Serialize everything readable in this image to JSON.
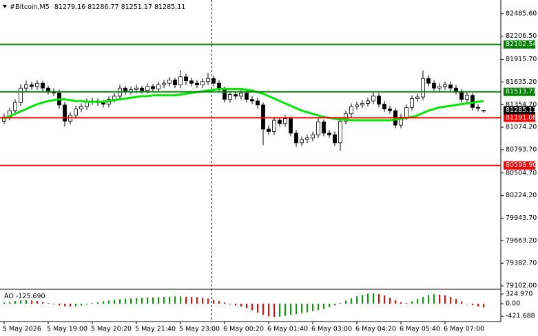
{
  "chart_data": {
    "type": "candlestick",
    "title": "#Bitcoin,M5",
    "x_labels": [
      "5 May 2026",
      "5 May 19:00",
      "5 May 20:20",
      "5 May 21:40",
      "5 May 23:00",
      "6 May 00:20",
      "6 May 01:40",
      "6 May 03:00",
      "6 May 04:20",
      "6 May 05:40",
      "6 May 07:00"
    ],
    "open": [
      81150,
      81200,
      81280,
      81380,
      81560,
      81600,
      81580,
      81620,
      81560,
      81520,
      81500,
      81350,
      81150,
      81220,
      81300,
      81330,
      81390,
      81400,
      81380,
      81360,
      81420,
      81460,
      81560,
      81520,
      81540,
      81560,
      81530,
      81580,
      81550,
      81600,
      81620,
      81660,
      81600,
      81700,
      81650,
      81620,
      81600,
      81640,
      81680,
      81620,
      81560,
      81420,
      81480,
      81460,
      81500,
      81420,
      81400,
      81350,
      81050,
      81020,
      81160,
      81120,
      81180,
      81000,
      80880,
      80920,
      80940,
      80980,
      81140,
      81000,
      80980,
      80880,
      81150,
      81240,
      81330,
      81350,
      81370,
      81400,
      81460,
      81360,
      81300,
      81280,
      81100,
      81200,
      81320,
      81430,
      81450,
      81680,
      81620,
      81560,
      81580,
      81600,
      81560,
      81520,
      81420,
      81470,
      81320,
      81279.16
    ],
    "high": [
      81240,
      81320,
      81420,
      81610,
      81650,
      81640,
      81660,
      81650,
      81590,
      81560,
      81540,
      81390,
      81260,
      81340,
      81370,
      81430,
      81440,
      81430,
      81410,
      81460,
      81500,
      81600,
      81590,
      81580,
      81600,
      81590,
      81620,
      81610,
      81640,
      81660,
      81700,
      81690,
      81780,
      81740,
      81690,
      81660,
      81680,
      81750,
      81720,
      81660,
      81580,
      81520,
      81510,
      81540,
      81530,
      81460,
      81440,
      81380,
      81100,
      81200,
      81200,
      81220,
      81210,
      81040,
      80960,
      80980,
      81020,
      81190,
      81170,
      81040,
      81020,
      81190,
      81280,
      81370,
      81390,
      81410,
      81440,
      81520,
      81500,
      81400,
      81340,
      81310,
      81240,
      81360,
      81470,
      81490,
      81780,
      81720,
      81660,
      81620,
      81640,
      81640,
      81600,
      81550,
      81520,
      81500,
      81360,
      81286.77
    ],
    "low": [
      81110,
      81160,
      81240,
      81340,
      81510,
      81540,
      81540,
      81510,
      81480,
      81460,
      81300,
      81080,
      81110,
      81180,
      81260,
      81290,
      81350,
      81340,
      81320,
      81320,
      81380,
      81420,
      81480,
      81480,
      81500,
      81490,
      81490,
      81510,
      81510,
      81560,
      81580,
      81560,
      81560,
      81600,
      81580,
      81560,
      81560,
      81600,
      81580,
      81520,
      81380,
      81380,
      81420,
      81420,
      81380,
      81360,
      81300,
      80850,
      80980,
      80980,
      81080,
      81080,
      80960,
      80830,
      80840,
      80880,
      80900,
      80940,
      80960,
      80940,
      80840,
      80780,
      81110,
      81200,
      81290,
      81310,
      81330,
      81360,
      81320,
      81260,
      81240,
      81060,
      81060,
      81160,
      81280,
      81390,
      81410,
      81580,
      81520,
      81520,
      81540,
      81520,
      81480,
      81380,
      81380,
      81280,
      81270,
      81251.17
    ],
    "close": [
      81200,
      81280,
      81380,
      81560,
      81600,
      81580,
      81620,
      81560,
      81520,
      81500,
      81350,
      81150,
      81220,
      81300,
      81330,
      81390,
      81400,
      81380,
      81360,
      81420,
      81460,
      81560,
      81520,
      81540,
      81560,
      81530,
      81580,
      81550,
      81600,
      81620,
      81660,
      81600,
      81700,
      81650,
      81620,
      81600,
      81640,
      81680,
      81620,
      81560,
      81420,
      81480,
      81460,
      81500,
      81420,
      81400,
      81350,
      81050,
      81020,
      81160,
      81120,
      81180,
      81000,
      80880,
      80920,
      80940,
      80980,
      81140,
      81000,
      80980,
      80880,
      81150,
      81240,
      81330,
      81350,
      81370,
      81400,
      81460,
      81360,
      81300,
      81280,
      81100,
      81200,
      81320,
      81430,
      81450,
      81680,
      81620,
      81560,
      81580,
      81600,
      81560,
      81520,
      81420,
      81470,
      81320,
      81310,
      81285.11
    ],
    "up_color": "#ffffff",
    "down_color": "#000000",
    "ylim": [
      79068,
      82655
    ],
    "yticks": [
      {
        "value": 82485.6,
        "label": "82485.60"
      },
      {
        "value": 82206.5,
        "label": "82206.50"
      },
      {
        "value": 81915.7,
        "label": "81915.70"
      },
      {
        "value": 81635.2,
        "label": "81635.20"
      },
      {
        "value": 81354.7,
        "label": "81354.70"
      },
      {
        "value": 81074.2,
        "label": "81074.20"
      },
      {
        "value": 80793.7,
        "label": "80793.70"
      },
      {
        "value": 80504.7,
        "label": "80504.70"
      },
      {
        "value": 80224.2,
        "label": "80224.20"
      },
      {
        "value": 79943.7,
        "label": "79943.70"
      },
      {
        "value": 79663.2,
        "label": "79663.20"
      },
      {
        "value": 79382.7,
        "label": "79382.70"
      },
      {
        "value": 79102,
        "label": "79102.00"
      }
    ],
    "ma": {
      "color": "#00e600",
      "values": [
        81180,
        81210,
        81240,
        81270,
        81300,
        81330,
        81360,
        81380,
        81400,
        81410,
        81420,
        81420,
        81410,
        81400,
        81400,
        81390,
        81390,
        81390,
        81390,
        81400,
        81410,
        81420,
        81430,
        81440,
        81450,
        81460,
        81460,
        81470,
        81470,
        81470,
        81470,
        81470,
        81480,
        81490,
        81500,
        81510,
        81520,
        81530,
        81540,
        81550,
        81550,
        81550,
        81550,
        81550,
        81540,
        81530,
        81510,
        81490,
        81460,
        81430,
        81400,
        81370,
        81340,
        81310,
        81280,
        81260,
        81240,
        81220,
        81200,
        81190,
        81180,
        81170,
        81170,
        81160,
        81160,
        81160,
        81160,
        81160,
        81160,
        81160,
        81160,
        81170,
        81180,
        81190,
        81200,
        81220,
        81250,
        81280,
        81300,
        81320,
        81330,
        81340,
        81350,
        81360,
        81370,
        81380,
        81390,
        81400
      ]
    },
    "levels": [
      {
        "value": 82102.54,
        "color": "#008000"
      },
      {
        "value": 81513.71,
        "color": "#008000"
      },
      {
        "value": 81191.08,
        "color": "#ff0000"
      },
      {
        "value": 80598.9,
        "label": "80598.90",
        "color": "#ff0000"
      }
    ],
    "ao": {
      "type": "bar",
      "title": "AO",
      "current": {
        "value": -125.69,
        "label": "-125.690"
      },
      "up_color": "#00a000",
      "down_color": "#ff0000",
      "ylim": [
        -580,
        441
      ],
      "yticks": [
        {
          "value": 324.97,
          "label": "324.970"
        },
        {
          "value": 0,
          "label": "0.00"
        },
        {
          "value": -421.688,
          "label": "-421.688"
        }
      ],
      "values": [
        40,
        60,
        90,
        110,
        120,
        110,
        90,
        60,
        20,
        -20,
        -60,
        -90,
        -100,
        -80,
        -60,
        -30,
        20,
        50,
        80,
        110,
        130,
        150,
        170,
        180,
        190,
        200,
        210,
        210,
        220,
        230,
        240,
        250,
        250,
        240,
        230,
        220,
        200,
        170,
        130,
        90,
        40,
        -20,
        -60,
        -100,
        -150,
        -220,
        -300,
        -380,
        -430,
        -450,
        -440,
        -410,
        -380,
        -350,
        -320,
        -290,
        -250,
        -220,
        -180,
        -120,
        -60,
        20,
        100,
        180,
        250,
        300,
        340,
        350,
        330,
        280,
        200,
        120,
        50,
        20,
        80,
        160,
        230,
        290,
        320,
        310,
        280,
        230,
        160,
        80,
        0,
        -50,
        -100,
        -125.69
      ]
    }
  }
}
